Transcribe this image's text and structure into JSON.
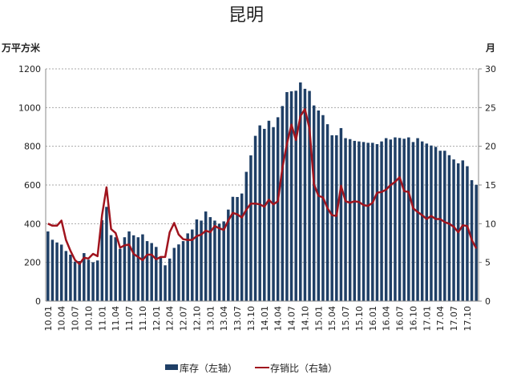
{
  "chart_data": {
    "type": "bar+line",
    "title": "昆明",
    "ylabel_left": "万平方米",
    "ylabel_right": "月",
    "ylim_left": [
      0,
      1200
    ],
    "yticks_left": [
      0,
      200,
      400,
      600,
      800,
      1000,
      1200
    ],
    "ylim_right": [
      0,
      30
    ],
    "yticks_right": [
      0,
      5,
      10,
      15,
      20,
      25,
      30
    ],
    "grid": "horizontal dotted",
    "legend_position": "bottom",
    "colors": {
      "bar": "#1f3f66",
      "line": "#a0141e"
    },
    "x": [
      "10.01",
      "10.02",
      "10.03",
      "10.04",
      "10.05",
      "10.06",
      "10.07",
      "10.08",
      "10.09",
      "10.10",
      "10.11",
      "10.12",
      "11.01",
      "11.02",
      "11.03",
      "11.04",
      "11.05",
      "11.06",
      "11.07",
      "11.08",
      "11.09",
      "11.10",
      "11.11",
      "11.12",
      "12.01",
      "12.02",
      "12.03",
      "12.04",
      "12.05",
      "12.06",
      "12.07",
      "12.08",
      "12.09",
      "12.10",
      "12.11",
      "12.12",
      "13.01",
      "13.02",
      "13.03",
      "13.04",
      "13.05",
      "13.06",
      "13.07",
      "13.08",
      "13.09",
      "13.10",
      "13.11",
      "13.12",
      "14.01",
      "14.02",
      "14.03",
      "14.04",
      "14.05",
      "14.06",
      "14.07",
      "14.08",
      "14.09",
      "14.10",
      "14.11",
      "14.12",
      "15.01",
      "15.02",
      "15.03",
      "15.04",
      "15.05",
      "15.06",
      "15.07",
      "15.08",
      "15.09",
      "15.10",
      "15.11",
      "15.12",
      "16.01",
      "16.02",
      "16.03",
      "16.04",
      "16.05",
      "16.06",
      "16.07",
      "16.08",
      "16.09",
      "16.10",
      "16.11",
      "16.12",
      "17.01",
      "17.02",
      "17.03",
      "17.04",
      "17.05",
      "17.06",
      "17.07",
      "17.08",
      "17.09",
      "17.10",
      "17.11",
      "17.12"
    ],
    "xtick_labels": [
      "10.01",
      "10.04",
      "10.07",
      "10.10",
      "11.01",
      "11.04",
      "11.07",
      "11.10",
      "12.01",
      "12.04",
      "12.07",
      "12.10",
      "13.01",
      "13.04",
      "13.07",
      "13.10",
      "14.01",
      "14.04",
      "14.07",
      "14.10",
      "15.01",
      "15.04",
      "15.07",
      "15.10",
      "16.01",
      "16.04",
      "16.07",
      "16.10",
      "17.01",
      "17.04",
      "17.07",
      "17.10"
    ],
    "series": [
      {
        "name": "库存（左轴）",
        "type": "bar",
        "axis": "left",
        "values": [
          360,
          317,
          303,
          292,
          259,
          240,
          204,
          207,
          248,
          214,
          201,
          210,
          418,
          487,
          341,
          330,
          270,
          330,
          360,
          340,
          330,
          345,
          310,
          300,
          280,
          225,
          185,
          220,
          275,
          293,
          310,
          350,
          370,
          422,
          416,
          463,
          434,
          416,
          400,
          412,
          473,
          539,
          538,
          556,
          668,
          753,
          854,
          908,
          890,
          932,
          899,
          950,
          1008,
          1080,
          1084,
          1087,
          1130,
          1097,
          1086,
          1011,
          985,
          961,
          914,
          857,
          857,
          894,
          842,
          837,
          828,
          825,
          822,
          818,
          818,
          811,
          825,
          842,
          835,
          846,
          843,
          839,
          846,
          822,
          842,
          825,
          814,
          804,
          797,
          777,
          777,
          754,
          732,
          712,
          727,
          697,
          625,
          601
        ]
      },
      {
        "name": "存销比（右轴）",
        "type": "line",
        "axis": "right",
        "values": [
          10.0,
          9.75,
          9.75,
          10.4,
          7.9,
          6.5,
          5.3,
          4.8,
          5.6,
          5.5,
          6.1,
          5.8,
          11.1,
          14.7,
          9.3,
          8.8,
          6.9,
          7.2,
          7.3,
          6.1,
          5.7,
          5.3,
          6.0,
          6.0,
          5.4,
          5.7,
          5.7,
          8.9,
          10.1,
          8.6,
          8.0,
          7.9,
          7.9,
          8.4,
          8.6,
          9.1,
          8.9,
          9.7,
          9.4,
          9.2,
          10.4,
          11.4,
          11.2,
          10.8,
          11.8,
          12.6,
          12.6,
          12.5,
          12.2,
          13.1,
          12.5,
          12.9,
          17.2,
          20.3,
          22.8,
          20.8,
          23.9,
          24.8,
          22.3,
          15.1,
          13.6,
          13.4,
          12.0,
          11.1,
          11.0,
          14.9,
          12.9,
          12.7,
          12.9,
          12.8,
          12.4,
          12.3,
          12.7,
          14.0,
          14.1,
          14.4,
          15.0,
          15.4,
          16.0,
          14.2,
          14.1,
          12.0,
          11.5,
          11.1,
          10.6,
          11.0,
          10.6,
          10.6,
          10.2,
          10.0,
          9.6,
          8.9,
          9.8,
          9.7,
          7.9,
          6.8
        ]
      }
    ]
  }
}
